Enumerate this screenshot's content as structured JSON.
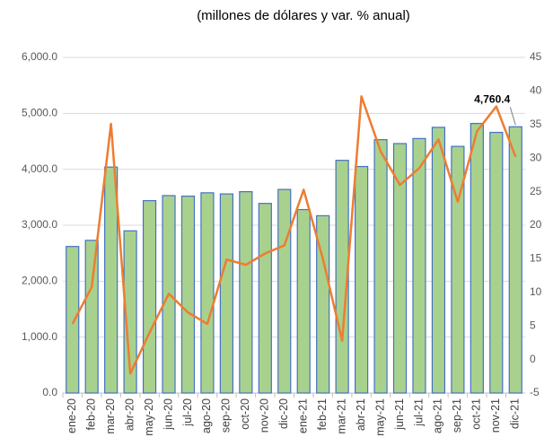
{
  "chart_data": {
    "type": "bar_line",
    "title": "(millones de dólares y var. % anual)",
    "categories": [
      "ene-20",
      "feb-20",
      "mar-20",
      "abr-20",
      "may-20",
      "jun-20",
      "jul-20",
      "ago-20",
      "sep-20",
      "oct-20",
      "nov-20",
      "dic-20",
      "ene-21",
      "feb-21",
      "mar-21",
      "abr-21",
      "may-21",
      "jun-21",
      "jul-21",
      "ago-21",
      "sep-21",
      "oct-21",
      "nov-21",
      "dic-21"
    ],
    "series": [
      {
        "type": "bar",
        "color": "#a9d18e",
        "edgecolor": "#4472c4",
        "values": [
          2620,
          2730,
          4040,
          2900,
          3440,
          3530,
          3520,
          3580,
          3560,
          3600,
          3390,
          3640,
          3280,
          3170,
          4160,
          4050,
          4530,
          4460,
          4550,
          4750,
          4410,
          4820,
          4660,
          4760.4
        ],
        "value_labels": [
          null,
          null,
          null,
          null,
          null,
          null,
          null,
          null,
          null,
          null,
          null,
          null,
          null,
          null,
          null,
          null,
          null,
          null,
          null,
          null,
          null,
          null,
          null,
          "4,760.4"
        ]
      },
      {
        "type": "line",
        "axis": "y2",
        "color": "#ed7d31",
        "values": [
          5.3,
          10.8,
          35.1,
          -2.1,
          4,
          9.8,
          7,
          5.3,
          14.9,
          14.1,
          15.8,
          17,
          25.3,
          15,
          2.8,
          39.2,
          31,
          26,
          28.5,
          32.8,
          23.5,
          34,
          37.7,
          30.2
        ]
      }
    ],
    "ylim": [
      0,
      6000
    ],
    "yticks": [
      {
        "value": 0,
        "label": "0.0"
      },
      {
        "value": 1000,
        "label": "1,000.0"
      },
      {
        "value": 2000,
        "label": "2,000.0"
      },
      {
        "value": 3000,
        "label": "3,000.0"
      },
      {
        "value": 4000,
        "label": "4,000.0"
      },
      {
        "value": 5000,
        "label": "5,000.0"
      },
      {
        "value": 6000,
        "label": "6,000.0"
      }
    ],
    "y2lim": [
      -5,
      45
    ],
    "y2ticks": [
      -5,
      0,
      5,
      10,
      15,
      20,
      25,
      30,
      35,
      40,
      45
    ],
    "grid": true
  }
}
